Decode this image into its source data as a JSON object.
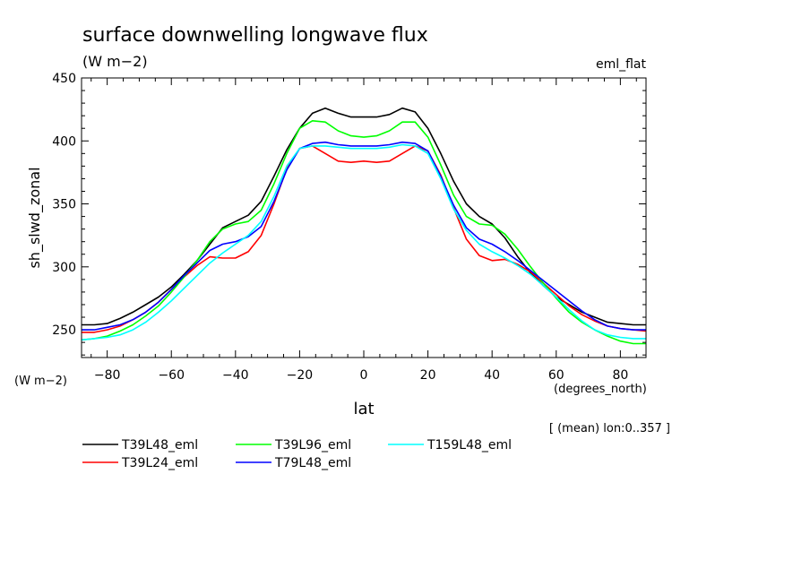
{
  "chart_data": {
    "type": "line",
    "title": "surface downwelling longwave flux",
    "title_units": "(W m−2)",
    "dataset_label": "eml_flat",
    "ylabel": "sh_slwd_zonal",
    "y_units": "(W m−2)",
    "xlabel": "lat",
    "x_units": "(degrees_north)",
    "note": "[ (mean) lon:0..357 ]",
    "xlim": [
      -88,
      88
    ],
    "ylim": [
      228,
      450
    ],
    "xticks": [
      -80,
      -60,
      -40,
      -20,
      0,
      20,
      40,
      60,
      80
    ],
    "xtick_labels": [
      "−80",
      "−60",
      "−40",
      "−20",
      "0",
      "20",
      "40",
      "60",
      "80"
    ],
    "yticks": [
      250,
      300,
      350,
      400,
      450
    ],
    "ytick_labels": [
      "250",
      "300",
      "350",
      "400",
      "450"
    ],
    "x": [
      -88,
      -84,
      -80,
      -76,
      -72,
      -68,
      -64,
      -60,
      -56,
      -52,
      -48,
      -44,
      -40,
      -36,
      -32,
      -28,
      -24,
      -20,
      -16,
      -12,
      -8,
      -4,
      0,
      4,
      8,
      12,
      16,
      20,
      24,
      28,
      32,
      36,
      40,
      44,
      48,
      52,
      56,
      60,
      64,
      68,
      72,
      76,
      80,
      84,
      88
    ],
    "series": [
      {
        "name": "T39L48_eml",
        "color": "#000000",
        "values": [
          254,
          254,
          255,
          259,
          264,
          270,
          276,
          284,
          294,
          305,
          318,
          331,
          336,
          341,
          352,
          372,
          393,
          410,
          422,
          426,
          422,
          419,
          419,
          419,
          421,
          426,
          423,
          410,
          390,
          368,
          350,
          340,
          334,
          323,
          308,
          295,
          285,
          276,
          270,
          264,
          260,
          256,
          255,
          254,
          254
        ]
      },
      {
        "name": "T39L24_eml",
        "color": "#ff0000",
        "values": [
          248,
          248,
          250,
          253,
          258,
          264,
          272,
          282,
          292,
          301,
          308,
          307,
          307,
          312,
          325,
          350,
          378,
          394,
          396,
          390,
          384,
          383,
          384,
          383,
          384,
          390,
          396,
          392,
          373,
          347,
          322,
          309,
          305,
          306,
          302,
          296,
          287,
          278,
          269,
          262,
          257,
          253,
          251,
          250,
          249
        ]
      },
      {
        "name": "T39L96_eml",
        "color": "#00ff00",
        "values": [
          242,
          243,
          245,
          249,
          254,
          261,
          269,
          280,
          292,
          305,
          320,
          330,
          334,
          336,
          345,
          366,
          390,
          410,
          416,
          415,
          408,
          404,
          403,
          404,
          408,
          415,
          415,
          403,
          381,
          357,
          340,
          334,
          333,
          326,
          314,
          300,
          287,
          275,
          264,
          256,
          250,
          245,
          241,
          239,
          239
        ]
      },
      {
        "name": "T79L48_eml",
        "color": "#0000ff",
        "values": [
          250,
          250,
          252,
          254,
          258,
          264,
          272,
          282,
          293,
          303,
          313,
          318,
          320,
          324,
          332,
          352,
          377,
          394,
          398,
          399,
          397,
          396,
          396,
          396,
          397,
          399,
          398,
          392,
          372,
          349,
          331,
          322,
          318,
          312,
          305,
          297,
          289,
          281,
          273,
          265,
          258,
          253,
          251,
          250,
          250
        ]
      },
      {
        "name": "T159L48_eml",
        "color": "#00ffff",
        "values": [
          242,
          243,
          244,
          246,
          250,
          256,
          264,
          273,
          283,
          293,
          303,
          311,
          318,
          325,
          336,
          356,
          380,
          394,
          396,
          396,
          395,
          394,
          394,
          394,
          395,
          397,
          396,
          390,
          370,
          346,
          329,
          318,
          312,
          307,
          301,
          294,
          285,
          276,
          266,
          257,
          250,
          246,
          244,
          243,
          243
        ]
      }
    ]
  }
}
